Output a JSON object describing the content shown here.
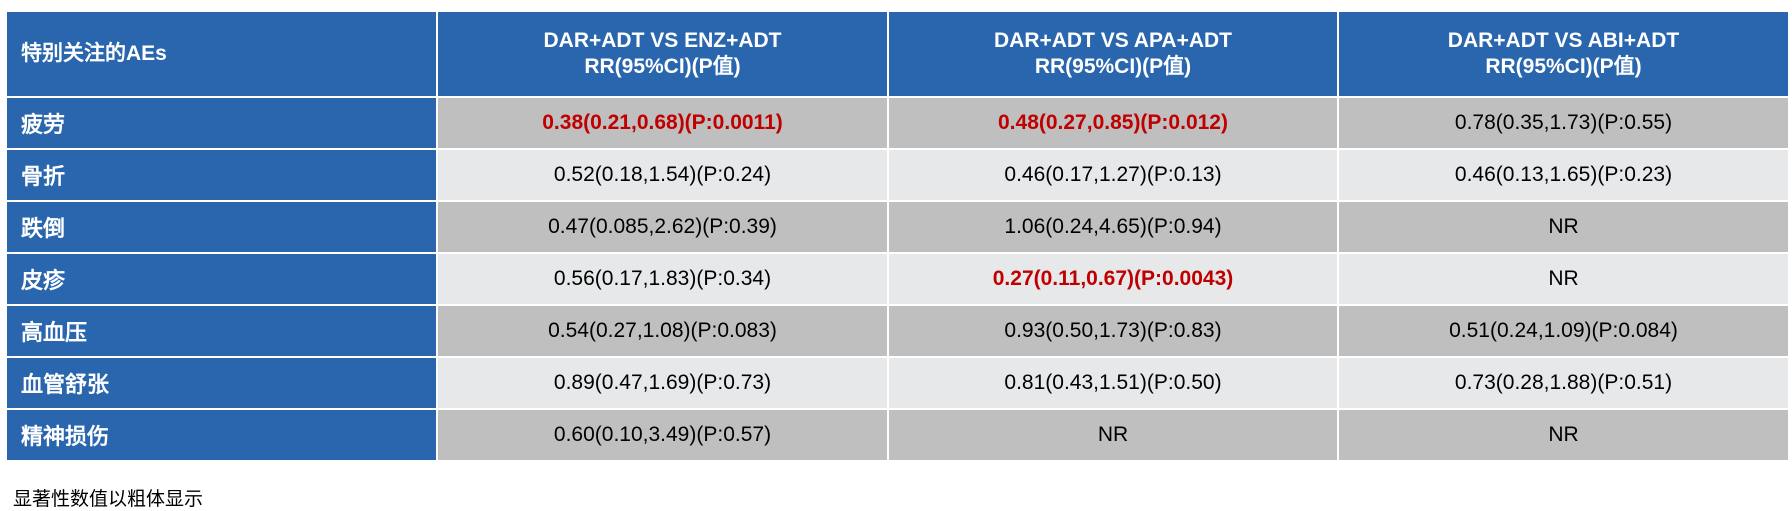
{
  "table": {
    "header": {
      "col0": "特别关注的AEs",
      "col1_line1": "DAR+ADT VS ENZ+ADT",
      "col1_line2": "RR(95%CI)(P值)",
      "col2_line1": "DAR+ADT VS APA+ADT",
      "col2_line2": "RR(95%CI)(P值)",
      "col3_line1": "DAR+ADT VS ABI+ADT",
      "col3_line2": "RR(95%CI)(P值)"
    },
    "rows": [
      {
        "label": "疲劳",
        "enz": "0.38(0.21,0.68)(P:0.0011)",
        "apa": "0.48(0.27,0.85)(P:0.012)",
        "abi": "0.78(0.35,1.73)(P:0.55)"
      },
      {
        "label": "骨折",
        "enz": "0.52(0.18,1.54)(P:0.24)",
        "apa": "0.46(0.17,1.27)(P:0.13)",
        "abi": "0.46(0.13,1.65)(P:0.23)"
      },
      {
        "label": "跌倒",
        "enz": "0.47(0.085,2.62)(P:0.39)",
        "apa": "1.06(0.24,4.65)(P:0.94)",
        "abi": "NR"
      },
      {
        "label": "皮疹",
        "enz": "0.56(0.17,1.83)(P:0.34)",
        "apa": "0.27(0.11,0.67)(P:0.0043)",
        "abi": "NR"
      },
      {
        "label": "高血压",
        "enz": "0.54(0.27,1.08)(P:0.083)",
        "apa": "0.93(0.50,1.73)(P:0.83)",
        "abi": "0.51(0.24,1.09)(P:0.084)"
      },
      {
        "label": "血管舒张",
        "enz": "0.89(0.47,1.69)(P:0.73)",
        "apa": "0.81(0.43,1.51)(P:0.50)",
        "abi": "0.73(0.28,1.88)(P:0.51)"
      },
      {
        "label": "精神损伤",
        "enz": "0.60(0.10,3.49)(P:0.57)",
        "apa": "NR",
        "abi": "NR"
      }
    ]
  },
  "footnote": "显著性数值以粗体显示",
  "colors": {
    "header_bg": "#2a66ae",
    "row_dark": "#bfbfbf",
    "row_light": "#e7e8e9",
    "significant_text": "#c00000"
  }
}
